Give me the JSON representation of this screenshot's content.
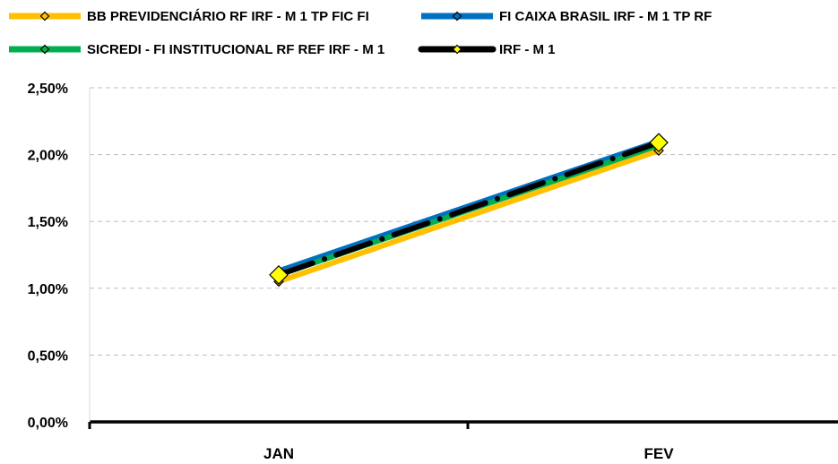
{
  "chart_data": {
    "type": "line",
    "title": "",
    "xlabel": "",
    "ylabel": "",
    "categories": [
      "JAN",
      "FEV"
    ],
    "ylim": [
      0,
      2.5
    ],
    "yticks": [
      "0,00%",
      "0,50%",
      "1,00%",
      "1,50%",
      "2,00%",
      "2,50%"
    ],
    "grid": "horizontal dashed",
    "legend_position": "top",
    "series": [
      {
        "name": "BB PREVIDENCIÁRIO RF IRF - M 1 TP FIC FI",
        "values": [
          1.05,
          2.03
        ],
        "color": "#FFC000",
        "marker_fill": "#FFC000",
        "style": "solid"
      },
      {
        "name": "FI CAIXA BRASIL IRF - M 1 TP RF",
        "values": [
          1.13,
          2.1
        ],
        "color": "#0070C0",
        "marker_fill": "#0070C0",
        "style": "solid"
      },
      {
        "name": "SICREDI - FI INSTITUCIONAL RF REF IRF - M 1",
        "values": [
          1.1,
          2.07
        ],
        "color": "#00B050",
        "marker_fill": "#00B050",
        "style": "solid"
      },
      {
        "name": "IRF - M 1",
        "values": [
          1.1,
          2.09
        ],
        "color": "#000000",
        "marker_fill": "#FFFF00",
        "style": "dashdot"
      }
    ]
  }
}
